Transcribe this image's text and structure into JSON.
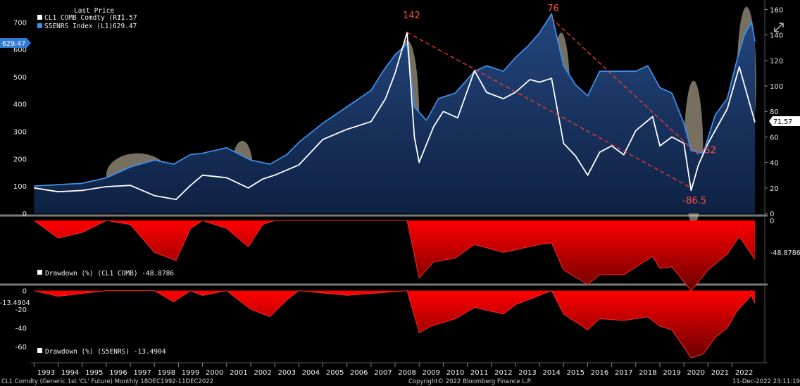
{
  "legend_main": {
    "header": "Last Price",
    "items": [
      {
        "label": "CL1 COMB Comdty  (R1)",
        "value": "71.57",
        "color": "#ffffff"
      },
      {
        "label": "S5ENRS Index  (L1)",
        "value": "629.47",
        "color": "#3d8ee8"
      }
    ]
  },
  "badges": {
    "left_main": "629.47",
    "right_main": "71.57",
    "right_dd1": "-48.8786",
    "left_dd2": "-13.4904"
  },
  "legend_dd1": "Drawdown (%) (CL1 COMB) -48.8786",
  "legend_dd2": "Drawdown (%) (S5ENRS) -13.4904",
  "footer": {
    "left": "CL1 Comdty (Generic 1st 'CL' Future)  Monthly 18DEC1992-11DEC2022",
    "center": "Copyright© 2022 Bloomberg Finance L.P.",
    "right": "11-Dec-2022 23:11:19"
  },
  "annotations": {
    "peaks": [
      {
        "label": "142",
        "year": 2008.5,
        "value": 142
      },
      {
        "label": "76",
        "year": 2014.5,
        "value": 153
      },
      {
        "label": "-86.5",
        "year": 2020.3,
        "value": 20
      },
      {
        "label": "-52",
        "year": 2020.6,
        "value": 46
      }
    ]
  },
  "chart_data": [
    {
      "type": "area",
      "title": "",
      "x_range": [
        1992.96,
        2022.95
      ],
      "x_ticks": [
        "1993",
        "1994",
        "1995",
        "1996",
        "1997",
        "1998",
        "1999",
        "2000",
        "2001",
        "2002",
        "2003",
        "2004",
        "2005",
        "2006",
        "2007",
        "2008",
        "2009",
        "2010",
        "2011",
        "2012",
        "2013",
        "2014",
        "2015",
        "2016",
        "2017",
        "2018",
        "2019",
        "2020",
        "2021",
        "2022"
      ],
      "y_left_ticks": [
        "0",
        "100",
        "200",
        "300",
        "400",
        "500",
        "600",
        "700"
      ],
      "y_left_range": [
        0,
        760
      ],
      "y_right_ticks": [
        "0",
        "20",
        "40",
        "60",
        "80",
        "100",
        "120",
        "140",
        "160"
      ],
      "y_right_range": [
        0,
        163
      ],
      "series": [
        {
          "name": "S5ENRS Index",
          "axis": "left",
          "color": "#3d8ee8",
          "points": [
            [
              1993,
              100
            ],
            [
              1994,
              105
            ],
            [
              1995,
              110
            ],
            [
              1996,
              130
            ],
            [
              1997,
              170
            ],
            [
              1998,
              195
            ],
            [
              1998.8,
              180
            ],
            [
              1999.5,
              215
            ],
            [
              2000,
              220
            ],
            [
              2001,
              240
            ],
            [
              2002,
              195
            ],
            [
              2002.8,
              180
            ],
            [
              2003.5,
              215
            ],
            [
              2004,
              260
            ],
            [
              2005,
              330
            ],
            [
              2006,
              390
            ],
            [
              2007,
              450
            ],
            [
              2007.5,
              520
            ],
            [
              2008,
              580
            ],
            [
              2008.5,
              620
            ],
            [
              2008.8,
              390
            ],
            [
              2009.3,
              340
            ],
            [
              2009.8,
              420
            ],
            [
              2010.5,
              440
            ],
            [
              2011.3,
              520
            ],
            [
              2011.8,
              540
            ],
            [
              2012.5,
              520
            ],
            [
              2013,
              570
            ],
            [
              2013.5,
              610
            ],
            [
              2014,
              660
            ],
            [
              2014.5,
              730
            ],
            [
              2015,
              540
            ],
            [
              2015.5,
              470
            ],
            [
              2016,
              430
            ],
            [
              2016.5,
              520
            ],
            [
              2017.3,
              520
            ],
            [
              2018,
              520
            ],
            [
              2018.5,
              540
            ],
            [
              2019,
              460
            ],
            [
              2019.5,
              440
            ],
            [
              2020,
              330
            ],
            [
              2020.3,
              230
            ],
            [
              2020.8,
              220
            ],
            [
              2021.3,
              360
            ],
            [
              2021.8,
              420
            ],
            [
              2022.2,
              560
            ],
            [
              2022.5,
              650
            ],
            [
              2022.8,
              700
            ],
            [
              2022.95,
              629.47
            ]
          ]
        },
        {
          "name": "CL1 COMB Comdty",
          "axis": "right",
          "color": "#ffffff",
          "points": [
            [
              1993,
              20
            ],
            [
              1994,
              17
            ],
            [
              1995,
              18
            ],
            [
              1996,
              21
            ],
            [
              1997,
              22
            ],
            [
              1998,
              14
            ],
            [
              1998.9,
              11
            ],
            [
              1999.5,
              22
            ],
            [
              2000,
              30
            ],
            [
              2001,
              28
            ],
            [
              2001.9,
              20
            ],
            [
              2002.5,
              27
            ],
            [
              2003,
              30
            ],
            [
              2004,
              38
            ],
            [
              2005,
              58
            ],
            [
              2006,
              66
            ],
            [
              2007,
              72
            ],
            [
              2007.6,
              90
            ],
            [
              2008,
              110
            ],
            [
              2008.5,
              142
            ],
            [
              2008.8,
              60
            ],
            [
              2009,
              40
            ],
            [
              2009.6,
              68
            ],
            [
              2010,
              80
            ],
            [
              2010.6,
              75
            ],
            [
              2011.3,
              112
            ],
            [
              2011.8,
              95
            ],
            [
              2012.5,
              90
            ],
            [
              2013,
              95
            ],
            [
              2013.6,
              105
            ],
            [
              2014,
              103
            ],
            [
              2014.5,
              106
            ],
            [
              2015,
              55
            ],
            [
              2015.5,
              45
            ],
            [
              2016,
              30
            ],
            [
              2016.5,
              48
            ],
            [
              2017,
              53
            ],
            [
              2017.5,
              46
            ],
            [
              2018,
              65
            ],
            [
              2018.7,
              76
            ],
            [
              2019,
              53
            ],
            [
              2019.5,
              60
            ],
            [
              2020,
              55
            ],
            [
              2020.3,
              18
            ],
            [
              2020.6,
              38
            ],
            [
              2021,
              55
            ],
            [
              2021.8,
              82
            ],
            [
              2022.3,
              115
            ],
            [
              2022.6,
              95
            ],
            [
              2022.95,
              71.57
            ]
          ]
        }
      ],
      "trendlines": [
        {
          "from": [
            2008.5,
            142
          ],
          "to": [
            2020.3,
            20
          ]
        },
        {
          "from": [
            2014.5,
            153
          ],
          "to": [
            2020.6,
            46
          ]
        }
      ],
      "highlights": [
        {
          "from": 1996.0,
          "to": 1998.6,
          "y_left_center": 140
        },
        {
          "from": 2001.2,
          "to": 2002.1,
          "y_left_center": 155
        },
        {
          "from": 2008.0,
          "to": 2009.0,
          "y_left_center": 350
        },
        {
          "from": 2014.5,
          "to": 2015.3,
          "y_left_center": 370
        },
        {
          "from": 2020.0,
          "to": 2020.8,
          "y_left_center": 220
        },
        {
          "from": 2022.2,
          "to": 2023.0,
          "y_left_center": 490
        }
      ]
    },
    {
      "type": "area",
      "title": "Drawdown (%) (CL1 COMB)",
      "y_range": [
        -75,
        0
      ],
      "y_ticks": [
        "0"
      ],
      "series": [
        {
          "name": "Drawdown (%) (CL1 COMB)",
          "color": "#ff0000",
          "points": [
            [
              1993,
              0
            ],
            [
              1994,
              -22
            ],
            [
              1995,
              -15
            ],
            [
              1996,
              0
            ],
            [
              1997,
              -5
            ],
            [
              1998,
              -40
            ],
            [
              1998.9,
              -50
            ],
            [
              1999.5,
              -10
            ],
            [
              2000,
              0
            ],
            [
              2001,
              -10
            ],
            [
              2001.9,
              -33
            ],
            [
              2002.5,
              -5
            ],
            [
              2003,
              0
            ],
            [
              2005,
              0
            ],
            [
              2007,
              0
            ],
            [
              2008.5,
              0
            ],
            [
              2009,
              -72
            ],
            [
              2009.6,
              -52
            ],
            [
              2010.5,
              -47
            ],
            [
              2011.3,
              -30
            ],
            [
              2012.5,
              -40
            ],
            [
              2014,
              -30
            ],
            [
              2014.5,
              -28
            ],
            [
              2015,
              -62
            ],
            [
              2016,
              -80
            ],
            [
              2016.5,
              -68
            ],
            [
              2017.5,
              -68
            ],
            [
              2018.7,
              -45
            ],
            [
              2019,
              -60
            ],
            [
              2019.5,
              -58
            ],
            [
              2020.3,
              -88
            ],
            [
              2021,
              -62
            ],
            [
              2021.8,
              -42
            ],
            [
              2022.3,
              -20
            ],
            [
              2022.95,
              -48.88
            ]
          ]
        }
      ]
    },
    {
      "type": "area",
      "title": "Drawdown (%) (S5ENRS)",
      "y_range": [
        -75,
        2
      ],
      "y_ticks": [
        "0",
        "-20",
        "-40",
        "-60"
      ],
      "series": [
        {
          "name": "Drawdown (%) (S5ENRS)",
          "color": "#ff0000",
          "points": [
            [
              1993,
              0
            ],
            [
              1994,
              -6
            ],
            [
              1995,
              -3
            ],
            [
              1996,
              0
            ],
            [
              1998,
              0
            ],
            [
              1998.8,
              -12
            ],
            [
              1999.5,
              0
            ],
            [
              2000,
              -5
            ],
            [
              2001,
              0
            ],
            [
              2002,
              -20
            ],
            [
              2002.8,
              -28
            ],
            [
              2003.5,
              -10
            ],
            [
              2004,
              0
            ],
            [
              2006,
              -5
            ],
            [
              2008.5,
              0
            ],
            [
              2009,
              -45
            ],
            [
              2009.5,
              -38
            ],
            [
              2010.5,
              -30
            ],
            [
              2011.3,
              -18
            ],
            [
              2012.5,
              -25
            ],
            [
              2013,
              -15
            ],
            [
              2014.5,
              0
            ],
            [
              2015,
              -25
            ],
            [
              2016,
              -42
            ],
            [
              2016.5,
              -30
            ],
            [
              2017.5,
              -32
            ],
            [
              2018.5,
              -28
            ],
            [
              2019,
              -38
            ],
            [
              2019.5,
              -42
            ],
            [
              2020.3,
              -72
            ],
            [
              2020.8,
              -68
            ],
            [
              2021.3,
              -50
            ],
            [
              2021.8,
              -40
            ],
            [
              2022.2,
              -22
            ],
            [
              2022.8,
              -5
            ],
            [
              2022.95,
              -13.49
            ]
          ]
        }
      ]
    }
  ]
}
